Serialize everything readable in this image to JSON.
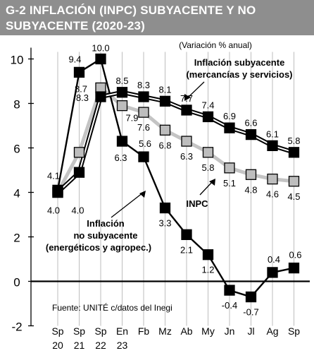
{
  "header": {
    "title_line1": "G-2   INFLACIÓN (INPC) SUBYACENTE Y NO",
    "title_line2": "SUBYACENTE (2020-23)"
  },
  "chart_data": {
    "type": "line",
    "subtitle": "(Variación % anual)",
    "source": "Fuente: UNITÉ c/datos del Inegi",
    "categories": [
      "Sp 20",
      "Sp 21",
      "Sp 22",
      "En 23",
      "Fb",
      "Mz",
      "Ab",
      "My",
      "Jn",
      "Jl",
      "Ag",
      "Sp"
    ],
    "x_labels_top": [
      "Sp",
      "Sp",
      "Sp",
      "En",
      "Fb",
      "Mz",
      "Ab",
      "My",
      "Jn",
      "Jl",
      "Ag",
      "Sp"
    ],
    "x_labels_bottom": [
      "20",
      "21",
      "22",
      "23",
      "",
      "",
      "",
      "",
      "",
      "",
      "",
      ""
    ],
    "ylim": [
      -2,
      10
    ],
    "yticks": [
      -2,
      0,
      2,
      4,
      6,
      8,
      10
    ],
    "grid": "vertical",
    "series": [
      {
        "name": "Inflación subyacente (mercancías y servicios)",
        "label_line1": "Inflación subyacente",
        "label_line2": "(mercancías y servicios)",
        "style": "double-black-line",
        "marker_color": "#000000",
        "values": [
          4.0,
          4.9,
          8.3,
          8.5,
          8.3,
          8.1,
          7.7,
          7.4,
          6.9,
          6.6,
          6.1,
          5.8
        ],
        "data_labels": [
          "4.0",
          "",
          "8.3",
          "8.5",
          "8.3",
          "8.1",
          "7.7",
          "7.4",
          "6.9",
          "6.6",
          "6.1",
          "5.8"
        ]
      },
      {
        "name": "INPC",
        "label_line1": "INPC",
        "style": "gray-line",
        "marker_color": "#bdbdbd",
        "values": [
          4.0,
          5.8,
          8.7,
          7.9,
          7.6,
          6.8,
          6.3,
          5.8,
          5.1,
          4.8,
          4.6,
          4.5
        ],
        "data_labels": [
          "",
          "",
          "8.7",
          "7.9",
          "7.6",
          "6.8",
          "6.3",
          "5.8",
          "5.1",
          "4.8",
          "4.6",
          "4.5"
        ]
      },
      {
        "name": "Inflación no subyacente (energéticos y agropec.)",
        "label_line1": "Inflación",
        "label_line2": "no subyacente",
        "label_line3": "(energéticos y agropec.)",
        "style": "black-line",
        "marker_color": "#000000",
        "values": [
          4.1,
          9.4,
          10.0,
          6.3,
          5.6,
          3.3,
          2.1,
          1.2,
          -0.4,
          -0.7,
          0.4,
          0.6
        ],
        "data_labels": [
          "4.1",
          "9.4",
          "10.0",
          "6.3",
          "5.6",
          "3.3",
          "2.1",
          "1.2",
          "-0.4",
          "-0.7",
          "0.4",
          "0.6"
        ]
      }
    ],
    "extra_labels": {
      "sp21_left": "4.0"
    }
  }
}
